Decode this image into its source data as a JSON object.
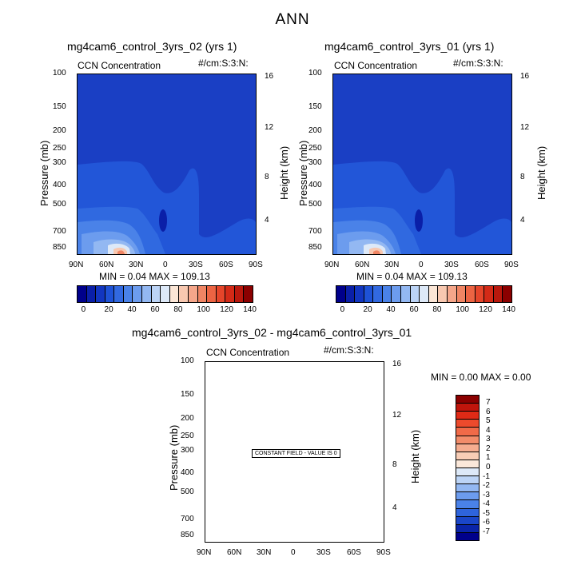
{
  "page": {
    "title": "ANN"
  },
  "panels": [
    {
      "title": "mg4cam6_control_3yrs_02 (yrs 1)",
      "var_label": "CCN Concentration",
      "units_label": "#/cm:S:3:N:",
      "ylabel": "Pressure (mb)",
      "ylabel_right": "Height (km)",
      "minmax": "MIN =   0.04   MAX = 109.13"
    },
    {
      "title": "mg4cam6_control_3yrs_01 (yrs 1)",
      "var_label": "CCN Concentration",
      "units_label": "#/cm:S:3:N:",
      "ylabel": "Pressure (mb)",
      "ylabel_right": "Height (km)",
      "minmax": "MIN =   0.04   MAX = 109.13"
    },
    {
      "title": "mg4cam6_control_3yrs_02 - mg4cam6_control_3yrs_01",
      "var_label": "CCN Concentration",
      "units_label": "#/cm:S:3:N:",
      "ylabel": "Pressure (mb)",
      "ylabel_right": "Height (km)",
      "minmax": "MIN =     0.00   MAX =     0.00",
      "note": "CONSTANT FIELD - VALUE IS 0"
    }
  ],
  "chart_data": {
    "type": "heatmap",
    "x_ticks": [
      "90N",
      "60N",
      "30N",
      "0",
      "30S",
      "60S",
      "90S"
    ],
    "x_values": [
      90,
      60,
      30,
      0,
      -30,
      -60,
      -90
    ],
    "y_ticks": [
      "100",
      "150",
      "200",
      "250",
      "300",
      "400",
      "500",
      "700",
      "850"
    ],
    "y_values": [
      100,
      150,
      200,
      250,
      300,
      400,
      500,
      700,
      850
    ],
    "y_range": [
      100,
      925
    ],
    "y_scale": "log",
    "height_ticks": [
      "16",
      "12",
      "8",
      "4"
    ],
    "height_values": [
      16,
      12,
      8,
      4
    ],
    "main_colorbar": {
      "labels": [
        "0",
        "20",
        "40",
        "60",
        "80",
        "100",
        "120",
        "140"
      ],
      "colors": [
        "#00008b",
        "#0a1fa8",
        "#1236c0",
        "#1e52d6",
        "#3269e0",
        "#4a82e8",
        "#6c9cee",
        "#93b8f2",
        "#bcd4f6",
        "#dde9f8",
        "#fbe6d6",
        "#f8c8b0",
        "#f5a68a",
        "#f08564",
        "#ec6443",
        "#e5452a",
        "#d32a17",
        "#b9180d",
        "#8b0000"
      ]
    },
    "diff_colorbar": {
      "labels": [
        "7",
        "6",
        "5",
        "4",
        "3",
        "2",
        "1",
        "0",
        "-1",
        "-2",
        "-3",
        "-4",
        "-5",
        "-6",
        "-7"
      ],
      "colors": [
        "#8b0000",
        "#c0150c",
        "#e02a16",
        "#ec4a2c",
        "#f06a48",
        "#f28c6a",
        "#f5ad90",
        "#f8cdb6",
        "#fbe8da",
        "#dde9f8",
        "#bcd4f6",
        "#93b8f2",
        "#6c9cee",
        "#4a82e8",
        "#2e64dc",
        "#1a46c8",
        "#0a24a8",
        "#00008b"
      ]
    }
  }
}
